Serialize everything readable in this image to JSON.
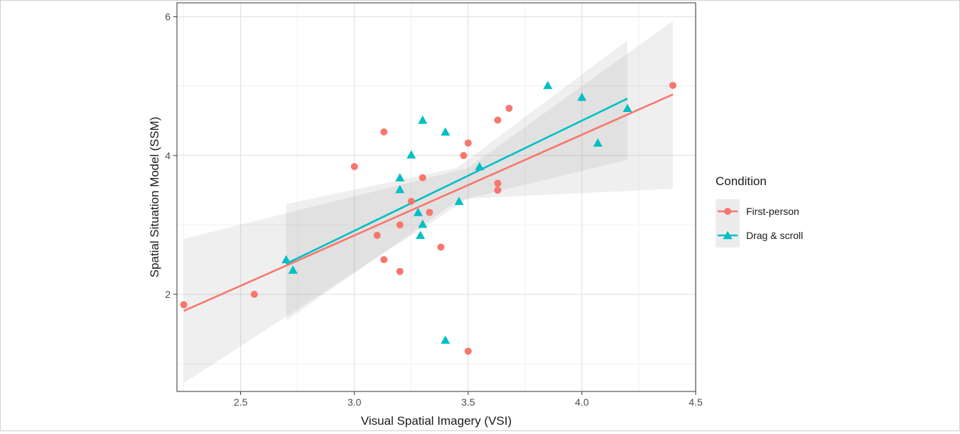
{
  "chart_data": {
    "type": "scatter",
    "xlabel": "Visual Spatial Imagery (VSI)",
    "ylabel": "Spatial Situation Model (SSM)",
    "xlim": [
      2.22,
      4.5
    ],
    "ylim": [
      0.6,
      6.2
    ],
    "x_ticks": [
      2.5,
      3.0,
      3.5,
      4.0,
      4.5
    ],
    "x_tick_labels": [
      "2.5",
      "3.0",
      "3.5",
      "4.0",
      "4.5"
    ],
    "y_ticks": [
      2,
      4,
      6
    ],
    "y_tick_labels": [
      "2",
      "4",
      "6"
    ],
    "grid": true,
    "legend": {
      "title": "Condition",
      "position": "right"
    },
    "series": [
      {
        "name": "First-person",
        "color": "#F8766D",
        "marker": "circle",
        "points": [
          [
            2.25,
            1.85
          ],
          [
            2.56,
            2.0
          ],
          [
            3.0,
            3.84
          ],
          [
            3.1,
            2.85
          ],
          [
            3.13,
            2.5
          ],
          [
            3.13,
            4.34
          ],
          [
            3.2,
            3.0
          ],
          [
            3.2,
            2.33
          ],
          [
            3.25,
            3.34
          ],
          [
            3.3,
            3.68
          ],
          [
            3.33,
            3.18
          ],
          [
            3.38,
            2.68
          ],
          [
            3.48,
            4.0
          ],
          [
            3.5,
            4.18
          ],
          [
            3.5,
            1.18
          ],
          [
            3.63,
            4.51
          ],
          [
            3.63,
            3.6
          ],
          [
            3.63,
            3.5
          ],
          [
            3.68,
            4.68
          ],
          [
            4.4,
            5.01
          ]
        ],
        "fit": {
          "x": [
            2.25,
            4.4
          ],
          "y": [
            1.76,
            4.88
          ]
        },
        "ci_lower": {
          "x": [
            2.25,
            3.5,
            4.4
          ],
          "y": [
            0.72,
            3.38,
            3.52
          ]
        },
        "ci_upper": {
          "x": [
            2.25,
            3.5,
            4.4
          ],
          "y": [
            2.8,
            3.82,
            5.94
          ]
        }
      },
      {
        "name": "Drag & scroll",
        "color": "#00BFC4",
        "marker": "triangle",
        "points": [
          [
            2.7,
            2.5
          ],
          [
            2.73,
            2.35
          ],
          [
            3.2,
            3.68
          ],
          [
            3.2,
            3.51
          ],
          [
            3.25,
            4.01
          ],
          [
            3.28,
            3.18
          ],
          [
            3.29,
            2.85
          ],
          [
            3.3,
            4.51
          ],
          [
            3.3,
            3.01
          ],
          [
            3.4,
            4.34
          ],
          [
            3.4,
            1.34
          ],
          [
            3.46,
            3.34
          ],
          [
            3.55,
            3.84
          ],
          [
            3.85,
            5.01
          ],
          [
            4.0,
            4.84
          ],
          [
            4.07,
            4.18
          ],
          [
            4.2,
            4.68
          ]
        ],
        "fit": {
          "x": [
            2.7,
            4.2
          ],
          "y": [
            2.44,
            4.82
          ]
        },
        "ci_lower": {
          "x": [
            2.7,
            3.45,
            4.2
          ],
          "y": [
            1.62,
            3.34,
            3.94
          ]
        },
        "ci_upper": {
          "x": [
            2.7,
            3.45,
            4.2
          ],
          "y": [
            3.3,
            3.82,
            5.66
          ]
        }
      }
    ]
  }
}
